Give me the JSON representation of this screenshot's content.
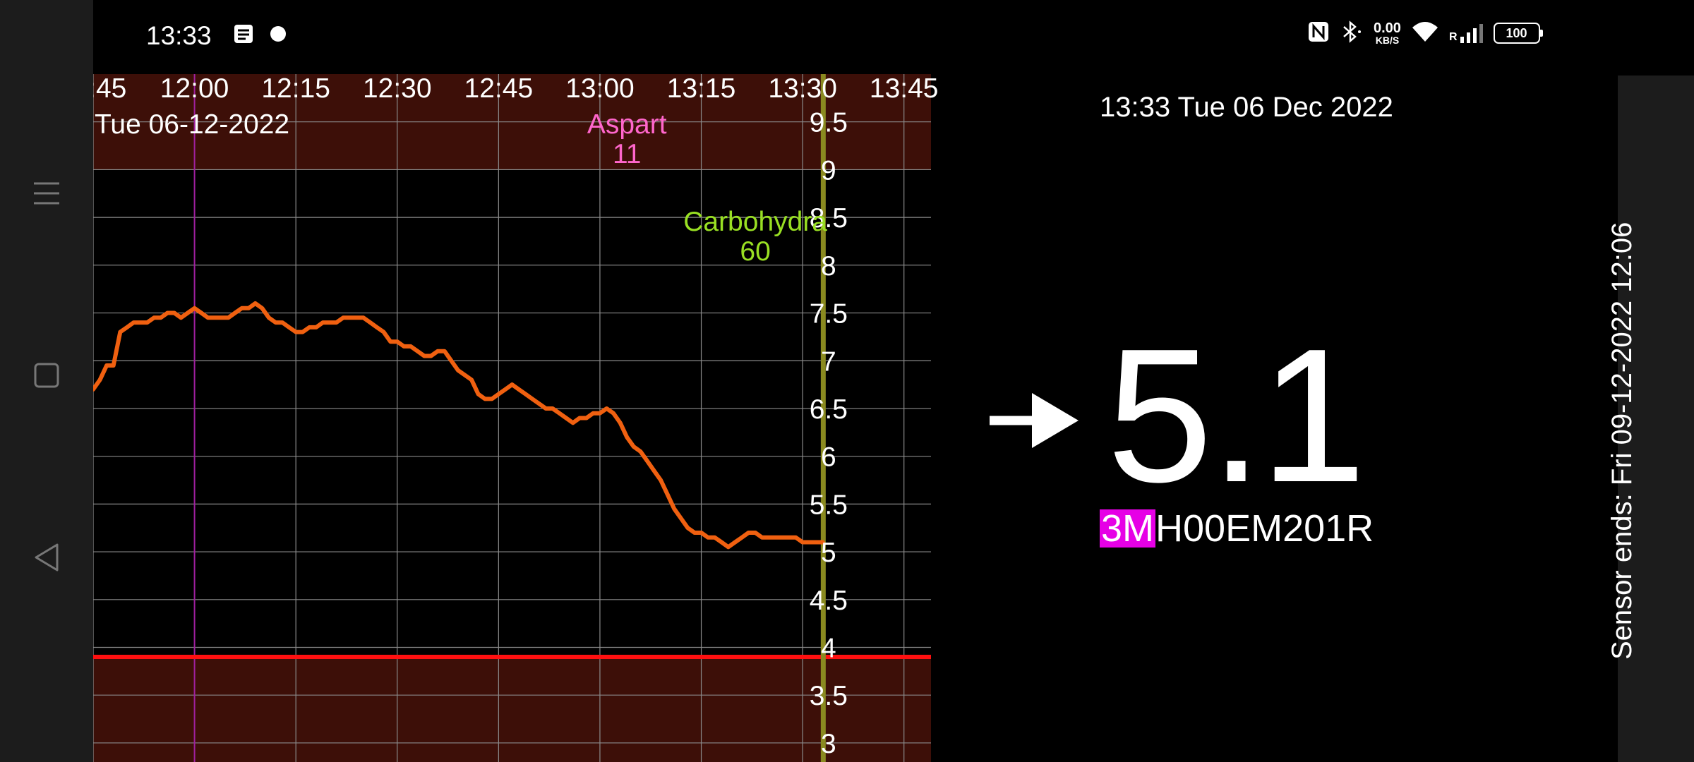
{
  "status_bar": {
    "time": "13:33",
    "left_icons": [
      "notes-icon",
      "dot-icon"
    ],
    "net_speed_value": "0.00",
    "net_speed_unit": "KB/S",
    "roaming": "R",
    "battery": "100",
    "right_icons": [
      "nfc-icon",
      "bluetooth-icon",
      "wifi-icon",
      "signal-icon",
      "battery-icon"
    ]
  },
  "nav_bar": {
    "items": [
      {
        "name": "menu-icon"
      },
      {
        "name": "home-icon"
      },
      {
        "name": "back-icon"
      }
    ]
  },
  "chart_data": {
    "type": "line",
    "date_label": "Tue 06-12-2022",
    "x_ticks": [
      "11:45",
      "12:00",
      "12:15",
      "12:30",
      "12:45",
      "13:00",
      "13:15",
      "13:30",
      "13:45"
    ],
    "x_range": [
      "11:45",
      "13:49"
    ],
    "y_ticks": [
      "9.5",
      "9",
      "8.5",
      "8",
      "7.5",
      "7",
      "6.5",
      "6",
      "5.5",
      "5",
      "4.5",
      "4",
      "3.5",
      "3"
    ],
    "ylim": [
      2.8,
      10.0
    ],
    "target_range": [
      3.9,
      9.0
    ],
    "low_threshold": 3.9,
    "now": "13:33",
    "grid": true,
    "colors": {
      "line": "#f06010",
      "out_of_range": "#3d0f08",
      "low_line": "#ff1010",
      "grid": "#8a8a8a",
      "now_line": "#8a8a20",
      "event_line": "#a020a0",
      "insulin": "#ff66cc",
      "carbs": "#99e023"
    },
    "events": [
      {
        "label": "Aspart",
        "value": "11",
        "time": "13:04"
      },
      {
        "label": "Carbohydra",
        "value": "60",
        "time": "13:23"
      },
      {
        "time": "12:00",
        "marker": "line"
      }
    ],
    "series": [
      {
        "x": [
          "11:45",
          "11:46",
          "11:47",
          "11:48",
          "11:49",
          "11:50",
          "11:51",
          "11:52",
          "11:53",
          "11:54",
          "11:55",
          "11:56",
          "11:57",
          "11:58",
          "11:59",
          "12:00",
          "12:01",
          "12:02",
          "12:03",
          "12:04",
          "12:05",
          "12:06",
          "12:07",
          "12:08",
          "12:09",
          "12:10",
          "12:11",
          "12:12",
          "12:13",
          "12:14",
          "12:15",
          "12:16",
          "12:17",
          "12:18",
          "12:19",
          "12:20",
          "12:21",
          "12:22",
          "12:23",
          "12:24",
          "12:25",
          "12:26",
          "12:27",
          "12:28",
          "12:29",
          "12:30",
          "12:31",
          "12:32",
          "12:33",
          "12:34",
          "12:35",
          "12:36",
          "12:37",
          "12:38",
          "12:39",
          "12:40",
          "12:41",
          "12:42",
          "12:43",
          "12:44",
          "12:45",
          "12:46",
          "12:47",
          "12:48",
          "12:49",
          "12:50",
          "12:51",
          "12:52",
          "12:53",
          "12:54",
          "12:55",
          "12:56",
          "12:57",
          "12:58",
          "12:59",
          "13:00",
          "13:01",
          "13:02",
          "13:03",
          "13:04",
          "13:05",
          "13:06",
          "13:07",
          "13:08",
          "13:09",
          "13:10",
          "13:11",
          "13:12",
          "13:13",
          "13:14",
          "13:15",
          "13:16",
          "13:17",
          "13:18",
          "13:19",
          "13:20",
          "13:21",
          "13:22",
          "13:23",
          "13:24",
          "13:25",
          "13:26",
          "13:27",
          "13:28",
          "13:29",
          "13:30",
          "13:31",
          "13:32",
          "13:33"
        ],
        "y": [
          6.7,
          6.8,
          6.95,
          6.95,
          7.3,
          7.35,
          7.4,
          7.4,
          7.4,
          7.45,
          7.45,
          7.5,
          7.5,
          7.45,
          7.5,
          7.55,
          7.5,
          7.45,
          7.45,
          7.45,
          7.45,
          7.5,
          7.55,
          7.55,
          7.6,
          7.55,
          7.45,
          7.4,
          7.4,
          7.35,
          7.3,
          7.3,
          7.35,
          7.35,
          7.4,
          7.4,
          7.4,
          7.45,
          7.45,
          7.45,
          7.45,
          7.4,
          7.35,
          7.3,
          7.2,
          7.2,
          7.15,
          7.15,
          7.1,
          7.05,
          7.05,
          7.1,
          7.1,
          7.0,
          6.9,
          6.85,
          6.8,
          6.65,
          6.6,
          6.6,
          6.65,
          6.7,
          6.75,
          6.7,
          6.65,
          6.6,
          6.55,
          6.5,
          6.5,
          6.45,
          6.4,
          6.35,
          6.4,
          6.4,
          6.45,
          6.45,
          6.5,
          6.45,
          6.35,
          6.2,
          6.1,
          6.05,
          5.95,
          5.85,
          5.75,
          5.6,
          5.45,
          5.35,
          5.25,
          5.2,
          5.2,
          5.15,
          5.15,
          5.1,
          5.05,
          5.1,
          5.15,
          5.2,
          5.2,
          5.15,
          5.15,
          5.15,
          5.15,
          5.15,
          5.15,
          5.1,
          5.1,
          5.1,
          5.1
        ]
      }
    ]
  },
  "reading": {
    "datetime": "13:33 Tue 06 Dec 2022",
    "value": "5.1",
    "trend_icon": "right-arrow-icon",
    "sensor_id_prefix": "3M",
    "sensor_id_rest": "H00EM201R",
    "sensor_ends": "Sensor ends: Fri 09-12-2022 12:06",
    "highlight_color": "#e600e6"
  }
}
